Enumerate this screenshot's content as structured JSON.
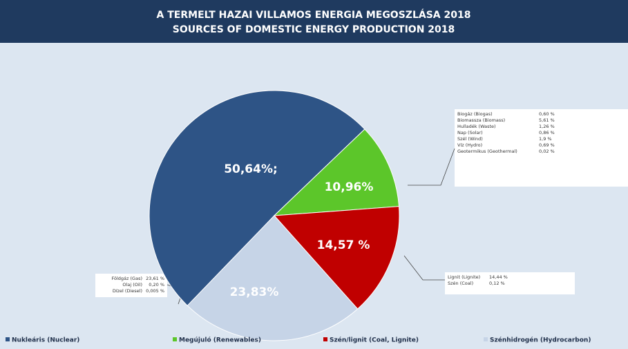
{
  "chart_data": {
    "type": "pie",
    "title": "A TERMELT HAZAI VILLAMOS ENERGIA MEGOSZLÁSA 2018",
    "subtitle": "SOURCES OF DOMESTIC ENERGY PRODUCTION 2018",
    "series": [
      {
        "name": "Nukleáris (Nuclear)",
        "color": "#2e5486",
        "values": [
          50.64
        ],
        "value_labels": [
          "50,64%;"
        ]
      },
      {
        "name": "Megújuló (Renewables)",
        "color": "#5cc62a",
        "values": [
          10.96
        ],
        "value_labels": [
          "10,96%"
        ]
      },
      {
        "name": "Szén/lignit (Coal, Lignite)",
        "color": "#c00000",
        "values": [
          14.57
        ],
        "value_labels": [
          "14,57 %"
        ]
      },
      {
        "name": "Szénhidrogén (Hydrocarbon)",
        "color": "#c6d4e7",
        "values": [
          23.83
        ],
        "value_labels": [
          "23,83%"
        ]
      }
    ],
    "annotations": [
      {
        "rows": [
          [
            "Biogáz (Biogas)",
            "0,60 %"
          ],
          [
            "Biomassza (Biomass)",
            "5,61 %"
          ],
          [
            "Hulladék (Waste)",
            "1,26 %"
          ],
          [
            "Nap (Solar)",
            "0,86 %"
          ],
          [
            "Szél (Wind)",
            "1,9 %"
          ],
          [
            "Víz (Hydro)",
            "0,69 %"
          ],
          [
            "Geotermikus (Geothermal)",
            "0,02 %"
          ]
        ]
      },
      {
        "rows": [
          [
            "Lignit (Lignite)",
            "14,44 %"
          ],
          [
            "Szén (Coal)",
            "0,12 %"
          ]
        ]
      },
      {
        "rows": [
          [
            "Földgáz (Gas)",
            "23,61 %"
          ],
          [
            "Olaj (Oil)",
            "0,20 %"
          ],
          [
            "Dízel (Diesel)",
            "0,005 %"
          ]
        ]
      }
    ]
  }
}
